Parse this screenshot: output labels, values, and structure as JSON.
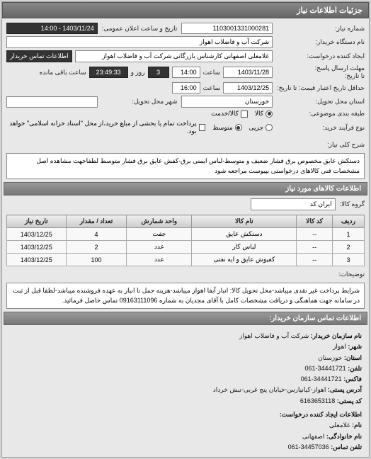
{
  "panel_title": "جزئیات اطلاعات نیاز",
  "fields": {
    "need_number_label": "شماره نیاز:",
    "need_number": "1103001331000281",
    "announce_datetime_label": "تاریخ و ساعت اعلان عمومی:",
    "announce_datetime": "1403/11/24 - 14:00",
    "buyer_org_label": "نام دستگاه خریدار:",
    "buyer_org": "شرکت آب و فاضلاب اهواز",
    "create_request_label": "ایجاد کننده درخواست:",
    "buyer_contact_btn": "اطلاعات تماس خریدار",
    "buyer_contact_value": "غلامعلی اصفهانی کارشناس بازرگانی شرکت آب و فاضلاب اهواز",
    "reply_deadline_label": "مهلت ارسال پاسخ:",
    "until_date_label": "تا تاریخ:",
    "until_date": "1403/11/28",
    "until_time_label": "ساعت",
    "until_time": "14:00",
    "remain_day": "3",
    "remain_day_label": "روز و",
    "remain_time": "23:49:33",
    "remain_suffix": "ساعت باقی مانده",
    "price_validity_label": "حداقل تاریخ اعتبار قیمت: تا تاریخ:",
    "price_validity_date": "1403/12/25",
    "price_validity_time_label": "ساعت",
    "price_validity_time": "16:00",
    "delivery_province_label": "استان محل تحویل:",
    "delivery_province": "خوزستان",
    "delivery_city_label": "شهر محل تحویل:",
    "pack_type_label": "طبقه بندی موضوعی:",
    "buy_type_label": "نوع فرآیند خرید:",
    "radio_small": "کالا",
    "radio_partial": "جزیی",
    "radio_check_bulk": "کالا/خدمت",
    "radio_medium": "متوسط",
    "payment_note": "پرداخت تمام یا بخشی از مبلغ خرید،از محل \"اسناد خزانه اسلامی\" خواهد بود.",
    "need_desc_label": "شرح کلی نیاز:",
    "need_desc": "دستکش عایق مخصوص برق فشار ضعیف و متوسط-لباس ایمنی برق-کفش عایق برق فشار متوسط لطفاجهت مشاهده اصل مشخصات فنی کالاهای درخواستی بپیوست مراجعه شود",
    "items_bar": "اطلاعات کالاهای مورد نیاز",
    "goods_group_label": "گروه کالا:",
    "goods_group": "ایران کد"
  },
  "table": {
    "headers": [
      "ردیف",
      "کد کالا",
      "نام کالا",
      "واحد شمارش",
      "تعداد / مقدار",
      "تاریخ نیاز"
    ],
    "rows": [
      [
        "1",
        "--",
        "دستکش عایق",
        "جفت",
        "4",
        "1403/12/25"
      ],
      [
        "2",
        "--",
        "لباس کار",
        "عدد",
        "2",
        "1403/12/25"
      ],
      [
        "3",
        "--",
        "کفپوش عایق و ایه نفتی",
        "عدد",
        "100",
        "1403/12/25"
      ]
    ]
  },
  "notes_label": "توضیحات:",
  "notes_text": "شرایط پرداخت غیر نقدی میباشد-محل تحویل کالا: انبار آبفا اهواز میباشد-هزینه حمل تا انبار به عهده فروشنده میباشد-لطفا قبل از ثبت در سامانه جهت هماهنگی و دریافت مشخصات کامل با آقای مجدیان به شماره 09163111096 تماس حاصل فرمائید.",
  "contact_bar": "اطلاعات تماس سازمان خریدار:",
  "contact": {
    "org_label": "نام سازمان خریدار:",
    "org": "شرکت آب و فاضلاب اهواز",
    "city_label": "شهر:",
    "city": "اهواز",
    "province_label": "استان:",
    "province": "خوزستان",
    "tel_label": "تلفن:",
    "tel": "34441721-061",
    "fax_label": "فاکس:",
    "fax": "34441721-061",
    "addr_label": "آدرس پستی:",
    "addr": "اهواز-کیانپارس-خیابان پنج غربی-نبش خرداد",
    "postal_label": "کد پستی:",
    "postal": "6163653118",
    "creator_bar": "اطلاعات ایجاد کننده درخواست:",
    "name_label": "نام:",
    "name": "غلامعلی",
    "lname_label": "نام خانوادگی:",
    "lname": "اصفهانی",
    "ctel_label": "تلفن تماس:",
    "ctel": "34457036-061"
  },
  "colors": {
    "header_bg_from": "#888888",
    "header_bg_to": "#666666",
    "panel_bg": "#e8e8e8",
    "field_bg": "#ffffff",
    "dark_field_bg": "#333333",
    "border": "#888888"
  }
}
